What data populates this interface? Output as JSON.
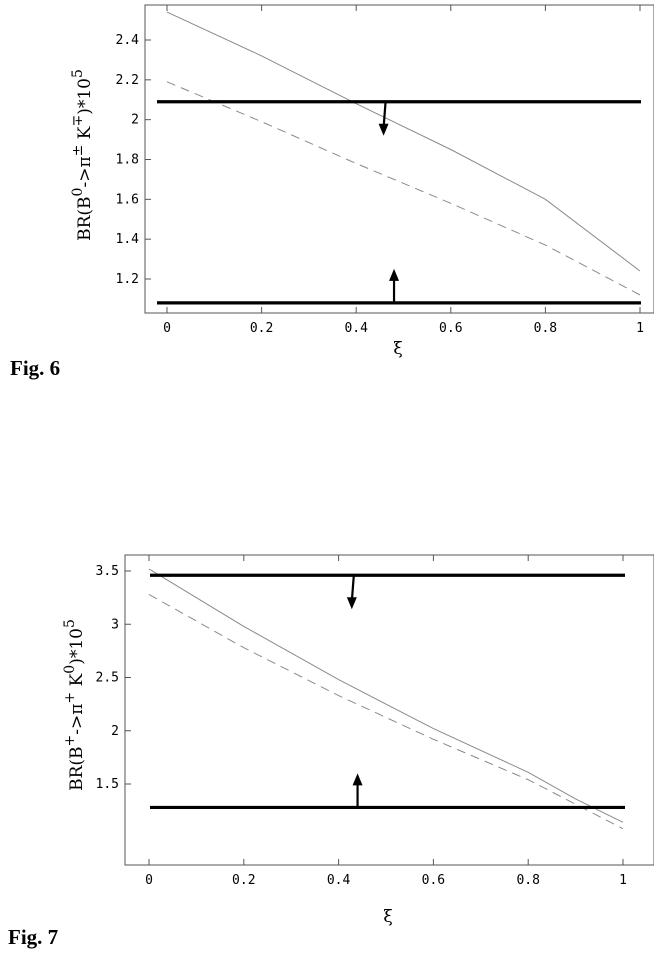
{
  "chart_data": [
    {
      "type": "line",
      "figure_label": "Fig. 6",
      "xlabel": "ξ",
      "ylabel": "BR(B^0->π^± K^∓)*10^5",
      "ylabel_parts": {
        "base": "BR(B",
        "sup1": "0",
        "mid1": "->π",
        "sup2": "±",
        "mid2": " K",
        "sup3": "∓",
        "mid3": ")*10",
        "sup4": "5"
      },
      "xlim": [
        0,
        1
      ],
      "ylim": [
        1.05,
        2.55
      ],
      "xticks": [
        0,
        0.2,
        0.4,
        0.6,
        0.8,
        1
      ],
      "xtick_labels": [
        "0",
        "0.2",
        "0.4",
        "0.6",
        "0.8",
        "1"
      ],
      "yticks": [
        1.2,
        1.4,
        1.6,
        1.8,
        2.0,
        2.2,
        2.4
      ],
      "ytick_labels": [
        "1.2",
        "1.4",
        "1.6",
        "1.8",
        "2",
        "2.2",
        "2.4"
      ],
      "series": [
        {
          "style": "solid",
          "x": [
            0,
            0.2,
            0.4,
            0.6,
            0.8,
            1
          ],
          "y": [
            2.54,
            2.32,
            2.08,
            1.85,
            1.6,
            1.24
          ]
        },
        {
          "style": "dashed",
          "x": [
            0,
            0.2,
            0.4,
            0.6,
            0.8,
            1
          ],
          "y": [
            2.19,
            1.99,
            1.78,
            1.58,
            1.37,
            1.12
          ]
        }
      ],
      "bounds": [
        {
          "kind": "upper",
          "y": 2.09,
          "arrow_x": 0.46
        },
        {
          "kind": "lower",
          "y": 1.08,
          "arrow_x": 0.48
        }
      ],
      "grid": false
    },
    {
      "type": "line",
      "figure_label": "Fig. 7",
      "xlabel": "ξ",
      "ylabel": "BR(B^+->π^+ K^0)*10^5",
      "ylabel_parts": {
        "base": "BR(B",
        "sup1": "+",
        "mid1": "->π",
        "sup2": "+",
        "mid2": " K",
        "sup3": "0",
        "mid3": ")*10",
        "sup4": "5"
      },
      "xlim": [
        0,
        1
      ],
      "ylim": [
        1.15,
        3.6
      ],
      "xticks": [
        0,
        0.2,
        0.4,
        0.6,
        0.8,
        1
      ],
      "xtick_labels": [
        "0",
        "0.2",
        "0.4",
        "0.6",
        "0.8",
        "1"
      ],
      "yticks": [
        1.5,
        2.0,
        2.5,
        3.0,
        3.5
      ],
      "ytick_labels": [
        "1.5",
        "2",
        "2.5",
        "3",
        "3.5"
      ],
      "series": [
        {
          "style": "solid",
          "x": [
            0,
            0.2,
            0.4,
            0.6,
            0.8,
            0.9,
            1
          ],
          "y": [
            3.52,
            2.98,
            2.48,
            2.02,
            1.61,
            1.36,
            1.14
          ]
        },
        {
          "style": "dashed",
          "x": [
            0,
            0.2,
            0.4,
            0.6,
            0.8,
            0.9,
            1
          ],
          "y": [
            3.28,
            2.78,
            2.33,
            1.92,
            1.54,
            1.31,
            1.08
          ]
        }
      ],
      "bounds": [
        {
          "kind": "upper",
          "y": 3.46,
          "arrow_x": 0.43
        },
        {
          "kind": "lower",
          "y": 1.28,
          "arrow_x": 0.44
        }
      ],
      "grid": false
    }
  ]
}
